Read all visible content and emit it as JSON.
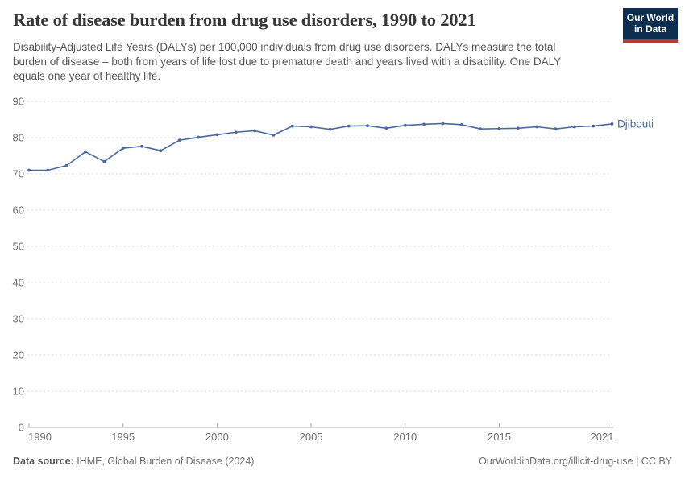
{
  "header": {
    "title": "Rate of disease burden from drug use disorders, 1990 to 2021",
    "subtitle": "Disability-Adjusted Life Years (DALYs) per 100,000 individuals from drug use disorders. DALYs measure the total burden of disease – both from years of life lost due to premature death and years lived with a disability. One DALY equals one year of healthy life.",
    "logo": {
      "line1": "Our World",
      "line2": "in Data"
    }
  },
  "chart_data": {
    "type": "line",
    "title": "Rate of disease burden from drug use disorders, 1990 to 2021",
    "xlabel": "",
    "ylabel": "DALYs per 100,000 individuals",
    "x": [
      1990,
      1991,
      1992,
      1993,
      1994,
      1995,
      1996,
      1997,
      1998,
      1999,
      2000,
      2001,
      2002,
      2003,
      2004,
      2005,
      2006,
      2007,
      2008,
      2009,
      2010,
      2011,
      2012,
      2013,
      2014,
      2015,
      2016,
      2017,
      2018,
      2019,
      2020,
      2021
    ],
    "series": [
      {
        "name": "Djibouti",
        "values": [
          71.0,
          71.0,
          72.3,
          76.1,
          73.4,
          77.1,
          77.6,
          76.4,
          79.3,
          80.1,
          80.8,
          81.5,
          81.9,
          80.7,
          83.2,
          83.0,
          82.3,
          83.2,
          83.3,
          82.6,
          83.4,
          83.7,
          83.9,
          83.6,
          82.4,
          82.5,
          82.6,
          83.0,
          82.4,
          83.0,
          83.2,
          83.8
        ]
      }
    ],
    "ylim": [
      0,
      90
    ],
    "yticks": [
      0,
      10,
      20,
      30,
      40,
      50,
      60,
      70,
      80,
      90
    ],
    "xticks": [
      1990,
      1995,
      2000,
      2005,
      2010,
      2015,
      2021
    ],
    "grid": "horizontal-dashed",
    "legend_position": "end-of-line"
  },
  "colors": {
    "line": "#4a699e",
    "series_label": "#4a699e",
    "gridline": "#d9d9d9",
    "axis": "#a8a8a8",
    "tick_label": "#6f6f6f",
    "logo_bg": "#0c2d4d",
    "logo_stripe": "#b23c30"
  },
  "footer": {
    "datasource_label": "Data source:",
    "datasource_value": " IHME, Global Burden of Disease (2024)",
    "site_link": "OurWorldinData.org/illicit-drug-use",
    "separator": " | ",
    "license": "CC BY"
  }
}
